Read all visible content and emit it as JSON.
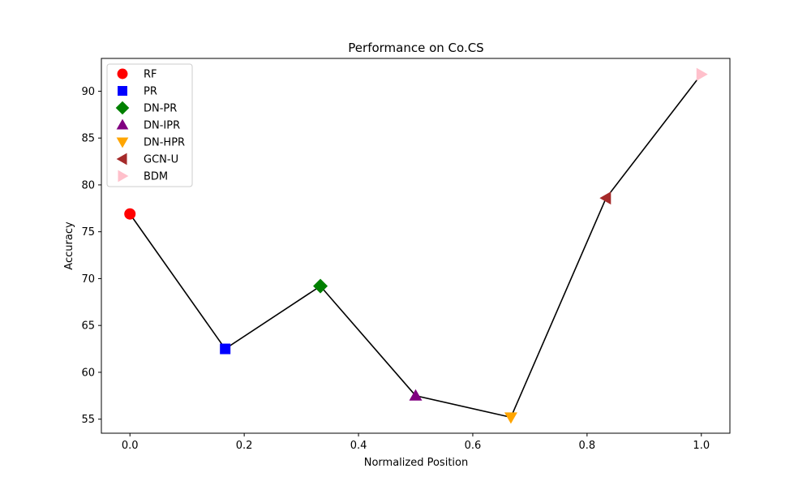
{
  "chart_data": {
    "type": "scatter",
    "title": "Performance on Co.CS",
    "xlabel": "Normalized Position",
    "ylabel": "Accuracy",
    "xlim": [
      -0.05,
      1.05
    ],
    "ylim": [
      53.5,
      93.5
    ],
    "xticks": [
      0.0,
      0.2,
      0.4,
      0.6,
      0.8,
      1.0
    ],
    "xtick_labels": [
      "0.0",
      "0.2",
      "0.4",
      "0.6",
      "0.8",
      "1.0"
    ],
    "yticks": [
      55,
      60,
      65,
      70,
      75,
      80,
      85,
      90
    ],
    "ytick_labels": [
      "55",
      "60",
      "65",
      "70",
      "75",
      "80",
      "85",
      "90"
    ],
    "grid": false,
    "legend_position": "top-left",
    "line_color": "#000000",
    "connect_points": true,
    "series": [
      {
        "name": "RF",
        "x": 0.0,
        "y": 76.9,
        "color": "#ff0000",
        "marker": "circle"
      },
      {
        "name": "PR",
        "x": 0.1667,
        "y": 62.5,
        "color": "#0000ff",
        "marker": "square"
      },
      {
        "name": "DN-PR",
        "x": 0.3333,
        "y": 69.2,
        "color": "#008000",
        "marker": "diamond"
      },
      {
        "name": "DN-IPR",
        "x": 0.5,
        "y": 57.5,
        "color": "#800080",
        "marker": "triangle-up"
      },
      {
        "name": "DN-HPR",
        "x": 0.6667,
        "y": 55.2,
        "color": "#ffa500",
        "marker": "triangle-down"
      },
      {
        "name": "GCN-U",
        "x": 0.8333,
        "y": 78.6,
        "color": "#a52a2a",
        "marker": "triangle-left"
      },
      {
        "name": "BDM",
        "x": 1.0,
        "y": 91.8,
        "color": "#ffc0cb",
        "marker": "triangle-right"
      }
    ]
  }
}
